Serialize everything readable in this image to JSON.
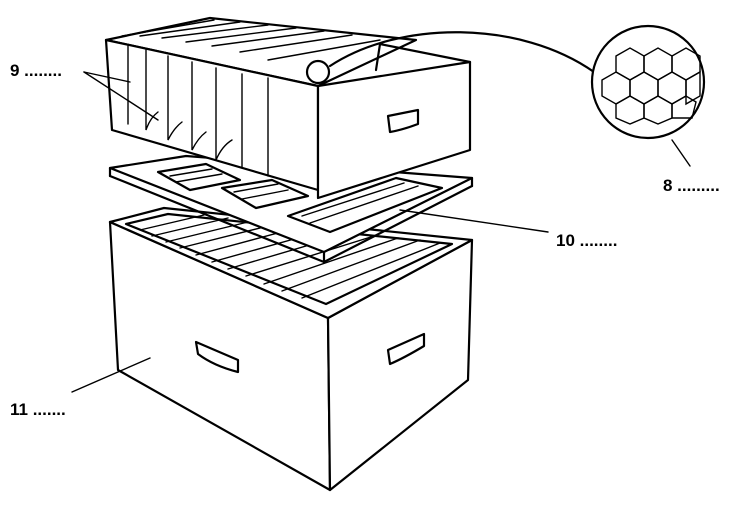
{
  "labels": {
    "l9": "9 ........",
    "l8": "8 .........",
    "l10": "10 ........",
    "l11": "11 ......."
  },
  "colors": {
    "ink": "#000000",
    "paper": "#ffffff"
  }
}
